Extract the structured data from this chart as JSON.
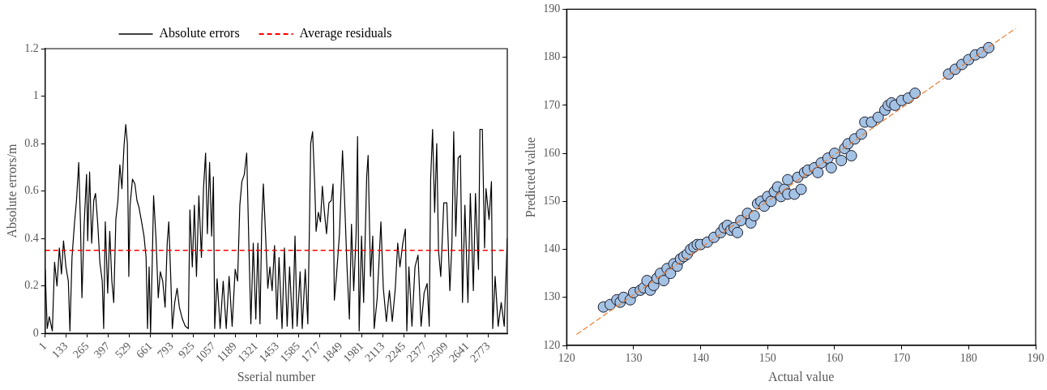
{
  "chart_data": [
    {
      "type": "line",
      "xlabel": "Sserial number",
      "ylabel": "Absolute errors/m",
      "x": [
        1,
        14,
        27,
        46,
        60,
        75,
        90,
        103,
        116,
        131,
        146,
        156,
        169,
        184,
        197,
        211,
        222,
        231,
        245,
        260,
        267,
        279,
        292,
        305,
        316,
        330,
        343,
        358,
        367,
        377,
        392,
        405,
        418,
        430,
        443,
        456,
        468,
        481,
        494,
        505,
        515,
        524,
        532,
        547,
        562,
        575,
        588,
        604,
        619,
        632,
        641,
        651,
        660,
        670,
        679,
        694,
        708,
        721,
        736,
        751,
        764,
        774,
        787,
        796,
        811,
        826,
        840,
        859,
        877,
        896,
        906,
        921,
        934,
        947,
        962,
        978,
        991,
        1004,
        1015,
        1029,
        1042,
        1053,
        1061,
        1076,
        1095,
        1114,
        1133,
        1151,
        1170,
        1189,
        1204,
        1218,
        1231,
        1246,
        1261,
        1274,
        1287,
        1302,
        1318,
        1331,
        1344,
        1355,
        1365,
        1378,
        1393,
        1406,
        1420,
        1435,
        1450,
        1463,
        1482,
        1497,
        1514,
        1529,
        1548,
        1563,
        1576,
        1595,
        1608,
        1627,
        1643,
        1652,
        1661,
        1673,
        1686,
        1695,
        1709,
        1722,
        1734,
        1747,
        1760,
        1775,
        1790,
        1801,
        1809,
        1822,
        1841,
        1860,
        1873,
        1888,
        1903,
        1916,
        1930,
        1945,
        1954,
        1964,
        1979,
        1992,
        2011,
        2020,
        2035,
        2049,
        2058,
        2077,
        2100,
        2115,
        2134,
        2153,
        2171,
        2190,
        2205,
        2219,
        2237,
        2253,
        2262,
        2275,
        2294,
        2313,
        2332,
        2351,
        2370,
        2389,
        2402,
        2411,
        2423,
        2436,
        2449,
        2460,
        2474,
        2493,
        2512,
        2531,
        2544,
        2555,
        2568,
        2583,
        2597,
        2610,
        2625,
        2644,
        2659,
        2678,
        2691,
        2710,
        2719,
        2734,
        2748,
        2757,
        2776,
        2791,
        2799,
        2814,
        2833,
        2852,
        2871,
        2890
      ],
      "series": [
        {
          "name": "Absolute errors",
          "color": "#000000",
          "values": [
            0.27,
            0.02,
            0.07,
            0.01,
            0.3,
            0.2,
            0.36,
            0.25,
            0.39,
            0.28,
            0.22,
            0.01,
            0.32,
            0.46,
            0.56,
            0.72,
            0.46,
            0.15,
            0.46,
            0.67,
            0.39,
            0.68,
            0.38,
            0.56,
            0.59,
            0.46,
            0.3,
            0.22,
            0.02,
            0.47,
            0.17,
            0.43,
            0.22,
            0.13,
            0.48,
            0.56,
            0.71,
            0.61,
            0.79,
            0.88,
            0.8,
            0.24,
            0.54,
            0.65,
            0.63,
            0.56,
            0.53,
            0.47,
            0.41,
            0.32,
            0.02,
            0.28,
            0.0,
            0.28,
            0.58,
            0.4,
            0.15,
            0.26,
            0.22,
            0.11,
            0.38,
            0.47,
            0.22,
            0.02,
            0.13,
            0.19,
            0.11,
            0.06,
            0.03,
            0.02,
            0.52,
            0.28,
            0.54,
            0.24,
            0.58,
            0.32,
            0.61,
            0.76,
            0.42,
            0.72,
            0.41,
            0.66,
            0.02,
            0.23,
            0.02,
            0.22,
            0.02,
            0.24,
            0.03,
            0.27,
            0.22,
            0.54,
            0.64,
            0.67,
            0.76,
            0.39,
            0.04,
            0.38,
            0.06,
            0.38,
            0.04,
            0.46,
            0.63,
            0.43,
            0.19,
            0.28,
            0.18,
            0.37,
            0.06,
            0.32,
            0.02,
            0.36,
            0.03,
            0.28,
            0.02,
            0.41,
            0.03,
            0.26,
            0.02,
            0.27,
            0.04,
            0.4,
            0.8,
            0.85,
            0.63,
            0.43,
            0.51,
            0.47,
            0.62,
            0.51,
            0.42,
            0.55,
            0.56,
            0.63,
            0.14,
            0.24,
            0.42,
            0.77,
            0.56,
            0.28,
            0.06,
            0.46,
            0.18,
            0.42,
            0.83,
            0.01,
            0.41,
            0.13,
            0.66,
            0.75,
            0.24,
            0.41,
            0.02,
            0.15,
            0.47,
            0.19,
            0.05,
            0.18,
            0.05,
            0.19,
            0.38,
            0.28,
            0.38,
            0.44,
            0.01,
            0.28,
            0.03,
            0.28,
            0.33,
            0.03,
            0.17,
            0.21,
            0.03,
            0.65,
            0.86,
            0.51,
            0.8,
            0.35,
            0.24,
            0.55,
            0.55,
            0.18,
            0.38,
            0.85,
            0.41,
            0.74,
            0.75,
            0.13,
            0.54,
            0.13,
            0.59,
            0.18,
            0.59,
            0.27,
            0.86,
            0.86,
            0.36,
            0.61,
            0.48,
            0.64,
            0.02,
            0.24,
            0.03,
            0.13,
            0.03,
            0.4
          ]
        }
      ],
      "ref_lines": [
        {
          "axis": "y",
          "value": 0.35,
          "label": "Average residuals",
          "color": "#ff0000",
          "line_style": "dashed"
        }
      ],
      "xlim": [
        1,
        2890
      ],
      "xticks": [
        1,
        133,
        265,
        397,
        529,
        661,
        793,
        925,
        1057,
        1189,
        1321,
        1453,
        1585,
        1717,
        1849,
        1981,
        2113,
        2245,
        2377,
        2509,
        2641,
        2773
      ],
      "ylim": [
        0,
        1.2
      ],
      "yticks": [
        0,
        0.2,
        0.4,
        0.6,
        0.8,
        1,
        1.2
      ],
      "grid": false,
      "legend": "top",
      "marker": "none",
      "line_style": "solid"
    },
    {
      "type": "scatter",
      "xlabel": "Actual value",
      "ylabel": "Predicted value",
      "x": [
        125.5,
        126.5,
        127.5,
        128,
        128.5,
        129.5,
        130,
        131,
        131.5,
        132,
        132.5,
        133,
        133.5,
        134,
        134.5,
        135,
        135.5,
        136,
        136.5,
        137,
        137.5,
        138,
        138.5,
        139,
        139.5,
        140,
        141,
        142,
        143,
        143.5,
        144,
        144.5,
        145,
        145.5,
        146,
        147,
        147.5,
        148,
        148.5,
        149,
        149.5,
        150,
        150.5,
        151,
        151.5,
        152,
        152.5,
        153,
        153,
        154,
        154.5,
        155,
        155.5,
        156,
        157,
        157.5,
        158,
        159,
        159.5,
        160,
        161,
        161.5,
        162,
        162.5,
        163,
        164,
        164.5,
        165.5,
        166.5,
        167.5,
        168,
        168.5,
        169,
        170,
        171,
        172,
        177,
        178,
        179,
        180,
        181,
        182,
        183
      ],
      "series": [
        {
          "type": "scatter",
          "color": "#a4c2e4",
          "marker": "circle",
          "values": [
            128,
            128.5,
            129.5,
            129,
            130,
            129.5,
            131,
            131.5,
            132,
            133.5,
            131.5,
            132.5,
            134,
            135,
            133.5,
            136,
            135,
            137,
            136.5,
            138,
            138.5,
            139,
            140,
            140.5,
            141,
            141,
            141.5,
            142.5,
            143.5,
            144.5,
            145,
            144,
            144.5,
            143.5,
            146,
            147.5,
            145.5,
            147,
            149.5,
            150,
            149,
            151,
            150,
            152,
            153,
            151,
            152.5,
            154.5,
            151.5,
            151.5,
            155,
            152.5,
            156,
            156.5,
            157,
            156,
            158,
            159,
            157,
            160,
            158.5,
            161,
            162,
            159.5,
            163,
            164,
            166.5,
            166.5,
            167.5,
            169,
            170,
            170.5,
            170,
            171,
            171.5,
            172.5,
            176.5,
            177.5,
            178.5,
            179.5,
            180.5,
            181,
            182
          ]
        },
        {
          "type": "line",
          "color": "#ed7d31",
          "line_style": "dashed",
          "marker": "none",
          "x": [
            121.5,
            187
          ],
          "values": [
            122.3,
            186
          ]
        }
      ],
      "xlim": [
        120,
        190
      ],
      "xticks": [
        120,
        130,
        140,
        150,
        160,
        170,
        180,
        190
      ],
      "ylim": [
        120,
        190
      ],
      "yticks": [
        120,
        130,
        140,
        150,
        160,
        170,
        180,
        190
      ],
      "grid": false,
      "legend": false
    }
  ]
}
